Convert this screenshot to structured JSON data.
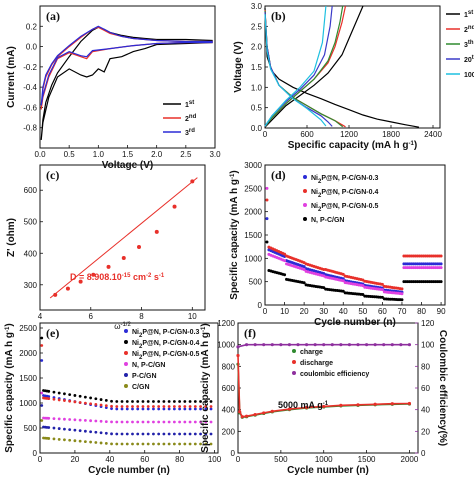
{
  "chart_data": [
    {
      "panel": "(a)",
      "type": "line",
      "xlabel": "Voltage (V)",
      "ylabel": "Current (mA)",
      "xlim": [
        0,
        3
      ],
      "ylim": [
        -1.0,
        0.4
      ],
      "xticks": [
        "0.0",
        "0.5",
        "1.0",
        "1.5",
        "2.0",
        "2.5",
        "3.0"
      ],
      "xtick_values": [
        0,
        0.5,
        1,
        1.5,
        2,
        2.5,
        3
      ],
      "yticks": [
        "-0.8",
        "-0.6",
        "-0.4",
        "-0.2",
        "0.0",
        "0.2"
      ],
      "ytick_values": [
        -0.8,
        -0.6,
        -0.4,
        -0.2,
        0,
        0.2
      ],
      "legend": "bottom-right",
      "series": [
        {
          "name": "1st",
          "color": "#000000",
          "x": [
            0.02,
            0.05,
            0.1,
            0.2,
            0.3,
            0.5,
            0.7,
            0.9,
            1.0,
            1.1,
            1.2,
            1.4,
            1.6,
            1.8,
            2.0,
            2.5,
            2.95,
            2.95,
            2.5,
            2.0,
            1.8,
            1.6,
            1.4,
            1.2,
            1.1,
            1.0,
            0.9,
            0.8,
            0.7,
            0.5,
            0.3,
            0.15,
            0.05,
            0.02
          ],
          "y": [
            -0.92,
            -0.72,
            -0.55,
            -0.38,
            -0.26,
            -0.1,
            0.05,
            0.16,
            0.19,
            0.17,
            0.14,
            0.11,
            0.09,
            0.08,
            0.07,
            0.07,
            0.06,
            0.04,
            0.03,
            0.02,
            -0.02,
            -0.05,
            -0.1,
            -0.12,
            -0.25,
            -0.22,
            -0.28,
            -0.3,
            -0.28,
            -0.22,
            -0.3,
            -0.5,
            -0.75,
            -0.92
          ]
        },
        {
          "name": "2nd",
          "color": "#e8302a",
          "x": [
            0.02,
            0.05,
            0.1,
            0.2,
            0.3,
            0.5,
            0.7,
            0.9,
            1.0,
            1.1,
            1.2,
            1.4,
            1.6,
            1.8,
            2.0,
            2.5,
            2.95,
            2.95,
            2.5,
            2.0,
            1.6,
            1.2,
            0.9,
            0.8,
            0.7,
            0.5,
            0.3,
            0.15,
            0.05,
            0.02
          ],
          "y": [
            -0.62,
            -0.42,
            -0.3,
            -0.18,
            -0.1,
            0.0,
            0.09,
            0.17,
            0.19,
            0.16,
            0.13,
            0.1,
            0.08,
            0.07,
            0.06,
            0.05,
            0.05,
            0.04,
            0.04,
            0.03,
            0.01,
            -0.02,
            -0.05,
            -0.12,
            -0.1,
            -0.06,
            -0.12,
            -0.3,
            -0.5,
            -0.62
          ]
        },
        {
          "name": "3rd",
          "color": "#2b2bd6",
          "x": [
            0.02,
            0.05,
            0.1,
            0.2,
            0.3,
            0.5,
            0.7,
            0.9,
            1.0,
            1.1,
            1.2,
            1.4,
            1.6,
            1.8,
            2.0,
            2.5,
            2.95,
            2.95,
            2.5,
            2.0,
            1.6,
            1.2,
            0.9,
            0.8,
            0.7,
            0.5,
            0.3,
            0.15,
            0.05,
            0.02
          ],
          "y": [
            -0.58,
            -0.4,
            -0.28,
            -0.17,
            -0.09,
            0.01,
            0.1,
            0.17,
            0.2,
            0.17,
            0.14,
            0.1,
            0.08,
            0.07,
            0.06,
            0.05,
            0.05,
            0.04,
            0.04,
            0.03,
            0.01,
            -0.02,
            -0.04,
            -0.1,
            -0.09,
            -0.05,
            -0.11,
            -0.28,
            -0.48,
            -0.58
          ]
        }
      ]
    },
    {
      "panel": "(b)",
      "type": "line",
      "xlabel": "Specific capacity (mA h g",
      "xlabel_sup": "-1",
      "xlabel_tail": ")",
      "ylabel": "Voltage (V)",
      "xlim": [
        0,
        2500
      ],
      "ylim": [
        0,
        3.0
      ],
      "xticks": [
        "0",
        "600",
        "1200",
        "1800",
        "2400"
      ],
      "xtick_values": [
        0,
        600,
        1200,
        1800,
        2400
      ],
      "yticks": [
        "0.0",
        "0.5",
        "1.0",
        "1.5",
        "2.0",
        "2.5",
        "3.0"
      ],
      "ytick_values": [
        0,
        0.5,
        1,
        1.5,
        2,
        2.5,
        3
      ],
      "legend": "top-right",
      "series": [
        {
          "name": "1st",
          "color": "#000000",
          "x": [
            0,
            30,
            100,
            200,
            400,
            600,
            800,
            1000,
            1200,
            1400,
            1600,
            1800,
            2000,
            2200
          ],
          "y": [
            2.95,
            1.75,
            1.4,
            1.2,
            1.0,
            0.85,
            0.72,
            0.58,
            0.45,
            0.32,
            0.22,
            0.15,
            0.08,
            0.02
          ]
        },
        {
          "name": "1st",
          "color": "#000000",
          "x": [
            0,
            100,
            300,
            500,
            700,
            900,
            1100,
            1200,
            1300,
            1400
          ],
          "y": [
            0.02,
            0.2,
            0.55,
            0.8,
            1.05,
            1.35,
            1.8,
            2.2,
            2.6,
            3.0
          ]
        },
        {
          "name": "2nd",
          "color": "#e8302a",
          "x": [
            0,
            30,
            80,
            200,
            400,
            600,
            800,
            1000,
            1150
          ],
          "y": [
            2.9,
            2.0,
            1.5,
            1.05,
            0.75,
            0.55,
            0.35,
            0.18,
            0.03
          ]
        },
        {
          "name": "2nd",
          "color": "#e8302a",
          "x": [
            0,
            100,
            300,
            500,
            700,
            900,
            1000,
            1100,
            1150
          ],
          "y": [
            0.03,
            0.25,
            0.6,
            0.9,
            1.2,
            1.6,
            2.0,
            2.6,
            3.0
          ]
        },
        {
          "name": "3th",
          "color": "#2f8a2f",
          "x": [
            0,
            30,
            80,
            200,
            400,
            600,
            800,
            1000,
            1110
          ],
          "y": [
            2.88,
            2.0,
            1.5,
            1.05,
            0.75,
            0.55,
            0.35,
            0.18,
            0.03
          ]
        },
        {
          "name": "3th",
          "color": "#2f8a2f",
          "x": [
            0,
            100,
            300,
            500,
            700,
            900,
            1000,
            1070,
            1110
          ],
          "y": [
            0.03,
            0.25,
            0.6,
            0.9,
            1.2,
            1.65,
            2.1,
            2.6,
            3.0
          ]
        },
        {
          "name": "20th",
          "color": "#3a3ac8",
          "x": [
            0,
            30,
            80,
            200,
            400,
            600,
            800,
            900,
            960
          ],
          "y": [
            2.85,
            2.0,
            1.5,
            1.05,
            0.72,
            0.5,
            0.3,
            0.15,
            0.04
          ]
        },
        {
          "name": "20th",
          "color": "#3a3ac8",
          "x": [
            0,
            100,
            300,
            500,
            700,
            850,
            930,
            960
          ],
          "y": [
            0.04,
            0.3,
            0.65,
            0.95,
            1.3,
            1.8,
            2.5,
            3.0
          ]
        },
        {
          "name": "100th",
          "color": "#1ec0e0",
          "x": [
            0,
            30,
            80,
            200,
            400,
            600,
            800,
            870
          ],
          "y": [
            2.8,
            1.9,
            1.45,
            1.05,
            0.72,
            0.48,
            0.2,
            0.05
          ]
        },
        {
          "name": "100th",
          "color": "#1ec0e0",
          "x": [
            0,
            100,
            300,
            500,
            700,
            820,
            870
          ],
          "y": [
            0.05,
            0.3,
            0.68,
            1.0,
            1.4,
            2.1,
            3.0
          ]
        }
      ]
    },
    {
      "panel": "(c)",
      "type": "scatter",
      "xlabel": "ω",
      "xlabel_sup": "-1/2",
      "ylabel": "Z' (ohm)",
      "xlim": [
        4,
        10.5
      ],
      "ylim": [
        220,
        680
      ],
      "xticks": [
        "4",
        "6",
        "8",
        "10"
      ],
      "xtick_values": [
        4,
        6,
        8,
        10
      ],
      "yticks": [
        "300",
        "400",
        "500",
        "600"
      ],
      "ytick_values": [
        300,
        400,
        500,
        600
      ],
      "x": [
        4.6,
        5.1,
        5.6,
        6.1,
        6.7,
        7.3,
        7.9,
        8.6,
        9.3,
        10.0
      ],
      "y": [
        268,
        288,
        310,
        332,
        357,
        385,
        420,
        468,
        548,
        628
      ],
      "fit": {
        "x": [
          4.4,
          10.2
        ],
        "y": [
          258,
          640
        ]
      },
      "annotation": "D = 8.908.10",
      "annotation_sup": "-15",
      "annotation_tail": " cm",
      "annotation_sup2": "-2",
      "annotation_tail2": " s",
      "annotation_sup3": "-1",
      "color": "#e8302a"
    },
    {
      "panel": "(d)",
      "type": "scatter",
      "xlabel": "Cycle number (n)",
      "ylabel": "Specific capacity (mA h g",
      "ylabel_sup": "-1",
      "ylabel_tail": ")",
      "xlim": [
        0,
        92
      ],
      "ylim": [
        0,
        3000
      ],
      "xticks": [
        "0",
        "10",
        "20",
        "30",
        "40",
        "50",
        "60",
        "70",
        "80",
        "90"
      ],
      "xtick_values": [
        0,
        10,
        20,
        30,
        40,
        50,
        60,
        70,
        80,
        90
      ],
      "yticks": [
        "0",
        "500",
        "1000",
        "1500",
        "2000",
        "2500",
        "3000"
      ],
      "ytick_values": [
        0,
        500,
        1000,
        1500,
        2000,
        2500,
        3000
      ],
      "legend": "top-right",
      "series": [
        {
          "name": "Ni",
          "sub": "2",
          "tail": "P@N, P-C/GN-0.3",
          "color": "#2b2bd6",
          "levels": [
            1200,
            950,
            780,
            650,
            520,
            420,
            320,
            880
          ],
          "first": 1850
        },
        {
          "name": "Ni",
          "sub": "2",
          "tail": "P@N, P-C/GN-0.4",
          "color": "#e8302a",
          "levels": [
            1260,
            1050,
            880,
            760,
            620,
            510,
            400,
            1050
          ],
          "first": 2250
        },
        {
          "name": "Ni",
          "sub": "2",
          "tail": "P@N, P-C/GN-0.5",
          "color": "#e040e0",
          "levels": [
            1100,
            880,
            720,
            600,
            480,
            380,
            280,
            800
          ],
          "first": 2500
        },
        {
          "name": "N, P-C/GN",
          "sub": "",
          "tail": "",
          "color": "#000000",
          "levels": [
            750,
            550,
            430,
            340,
            260,
            190,
            130,
            500
          ],
          "first": 1350
        }
      ]
    },
    {
      "panel": "(e)",
      "type": "scatter",
      "xlabel": "Cycle number (n)",
      "ylabel": "Specific capacity (mA h g",
      "ylabel_sup": "-1",
      "ylabel_tail": ")",
      "xlim": [
        0,
        102
      ],
      "ylim": [
        0,
        2600
      ],
      "xticks": [
        "0",
        "20",
        "40",
        "60",
        "80",
        "100"
      ],
      "xtick_values": [
        0,
        20,
        40,
        60,
        80,
        100
      ],
      "yticks": [
        "0",
        "500",
        "1000",
        "1500",
        "2000",
        "2500"
      ],
      "ytick_values": [
        0,
        500,
        1000,
        1500,
        2000,
        2500
      ],
      "legend": "top-right",
      "series": [
        {
          "name": "Ni",
          "sub": "2",
          "tail": "P@N, P-C/GN-0.3",
          "color": "#2b2bd6",
          "first": 1850,
          "start": 1150,
          "end": 880
        },
        {
          "name": "Ni",
          "sub": "2",
          "tail": "P@N, P-C/GN-0.4",
          "color": "#000000",
          "first": 2300,
          "start": 1250,
          "end": 1030
        },
        {
          "name": "Ni",
          "sub": "2",
          "tail": "P@N, P-C/GN-0.5",
          "color": "#e8302a",
          "first": 2150,
          "start": 1100,
          "end": 930
        },
        {
          "name": "N, P-C/GN",
          "sub": "",
          "tail": "",
          "color": "#e040e0",
          "first": 1200,
          "start": 700,
          "end": 620
        },
        {
          "name": "P-C/GN",
          "sub": "",
          "tail": "",
          "color": "#2222aa",
          "first": 950,
          "start": 520,
          "end": 380
        },
        {
          "name": "C/GN",
          "sub": "",
          "tail": "",
          "color": "#8a8a1a",
          "first": 650,
          "start": 300,
          "end": 180
        }
      ]
    },
    {
      "panel": "(f)",
      "type": "scatter",
      "xlabel": "Cycle number (n)",
      "ylabel": "Specific capacity (mA h g",
      "ylabel_sup": "-1",
      "ylabel_tail": ")",
      "ylabel_right": "Coulombic efficiency(%)",
      "xlim": [
        0,
        2100
      ],
      "ylim": [
        0,
        1200
      ],
      "ylim_right": [
        0,
        120
      ],
      "xticks": [
        "0",
        "500",
        "1000",
        "1500",
        "2000"
      ],
      "xtick_values": [
        0,
        500,
        1000,
        1500,
        2000
      ],
      "yticks": [
        "0",
        "200",
        "400",
        "600",
        "800",
        "1000",
        "1200"
      ],
      "ytick_values": [
        0,
        200,
        400,
        600,
        800,
        1000,
        1200
      ],
      "yticks_right": [
        "0",
        "20",
        "40",
        "60",
        "80",
        "100",
        "120"
      ],
      "ytick_values_right": [
        0,
        20,
        40,
        60,
        80,
        100,
        120
      ],
      "legend": "center",
      "annotation": "5000 mA g",
      "annotation_sup": "-1",
      "series": [
        {
          "name": "charge",
          "color": "#2f8a2f",
          "x": [
            0,
            20,
            50,
            100,
            200,
            300,
            400,
            600,
            800,
            1000,
            1200,
            1400,
            1600,
            1800,
            2000
          ],
          "y": [
            820,
            370,
            330,
            335,
            350,
            365,
            380,
            400,
            415,
            425,
            435,
            440,
            445,
            450,
            452
          ]
        },
        {
          "name": "discharge",
          "color": "#e8302a",
          "x": [
            0,
            20,
            50,
            100,
            200,
            300,
            400,
            600,
            800,
            1000,
            1200,
            1400,
            1600,
            1800,
            2000
          ],
          "y": [
            900,
            380,
            335,
            340,
            355,
            370,
            385,
            405,
            420,
            430,
            440,
            445,
            450,
            455,
            457
          ]
        },
        {
          "name": "coulombic efficiency",
          "color": "#8e2f9e",
          "axis": "right",
          "x": [
            0,
            100,
            200,
            300,
            400,
            500,
            600,
            700,
            800,
            900,
            1000,
            1100,
            1200,
            1300,
            1400,
            1500,
            1600,
            1700,
            1800,
            1900,
            2000
          ],
          "y": [
            98,
            100,
            100,
            100,
            100,
            100,
            100,
            100,
            100,
            100,
            100,
            100,
            100,
            100,
            100,
            100,
            100,
            100,
            100,
            100,
            100
          ]
        }
      ]
    }
  ]
}
